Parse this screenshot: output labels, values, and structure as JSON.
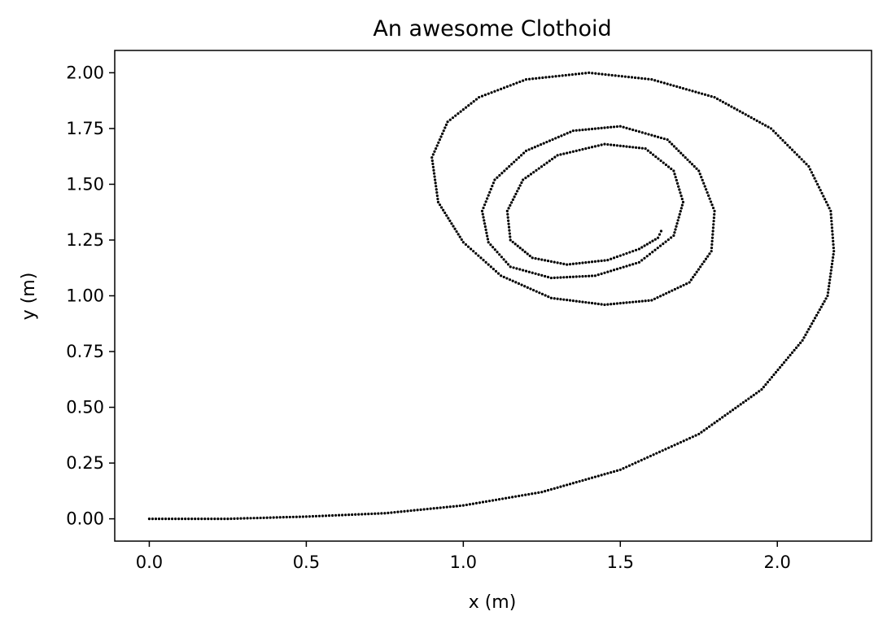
{
  "chart_data": {
    "type": "scatter",
    "title": "An awesome Clothoid",
    "xlabel": "x (m)",
    "ylabel": "y (m)",
    "xlim": [
      -0.11,
      2.3
    ],
    "ylim": [
      -0.1,
      2.1
    ],
    "xticks": [
      0.0,
      0.5,
      1.0,
      1.5,
      2.0
    ],
    "xtick_labels": [
      "0.0",
      "0.5",
      "1.0",
      "1.5",
      "2.0"
    ],
    "yticks": [
      0.0,
      0.25,
      0.5,
      0.75,
      1.0,
      1.25,
      1.5,
      1.75,
      2.0
    ],
    "ytick_labels": [
      "0.00",
      "0.25",
      "0.50",
      "0.75",
      "1.00",
      "1.25",
      "1.50",
      "1.75",
      "2.00"
    ],
    "grid": false,
    "marker_color": "#000000",
    "series": [
      {
        "x": [
          0.0,
          0.25,
          0.5,
          0.75,
          1.0,
          1.25,
          1.5,
          1.75,
          1.95,
          2.08,
          2.16,
          2.18,
          2.17,
          2.1,
          1.98,
          1.8,
          1.6,
          1.4,
          1.2,
          1.05,
          0.95,
          0.9,
          0.92,
          1.0,
          1.12,
          1.28,
          1.45,
          1.6,
          1.72,
          1.79,
          1.8,
          1.75,
          1.65,
          1.5,
          1.35,
          1.2,
          1.1,
          1.06,
          1.08,
          1.15,
          1.28,
          1.42,
          1.56,
          1.67,
          1.7,
          1.67,
          1.58,
          1.45,
          1.3,
          1.19,
          1.14,
          1.15,
          1.22,
          1.33,
          1.46,
          1.56,
          1.62,
          1.63
        ],
        "y": [
          0.0,
          0.0,
          0.01,
          0.025,
          0.06,
          0.12,
          0.22,
          0.38,
          0.58,
          0.8,
          1.0,
          1.2,
          1.38,
          1.58,
          1.75,
          1.89,
          1.97,
          2.0,
          1.97,
          1.89,
          1.78,
          1.62,
          1.42,
          1.24,
          1.09,
          0.99,
          0.96,
          0.98,
          1.06,
          1.2,
          1.38,
          1.56,
          1.7,
          1.76,
          1.74,
          1.65,
          1.52,
          1.38,
          1.24,
          1.13,
          1.08,
          1.09,
          1.15,
          1.27,
          1.42,
          1.56,
          1.66,
          1.68,
          1.63,
          1.52,
          1.38,
          1.25,
          1.17,
          1.14,
          1.16,
          1.21,
          1.26,
          1.29
        ]
      }
    ]
  }
}
